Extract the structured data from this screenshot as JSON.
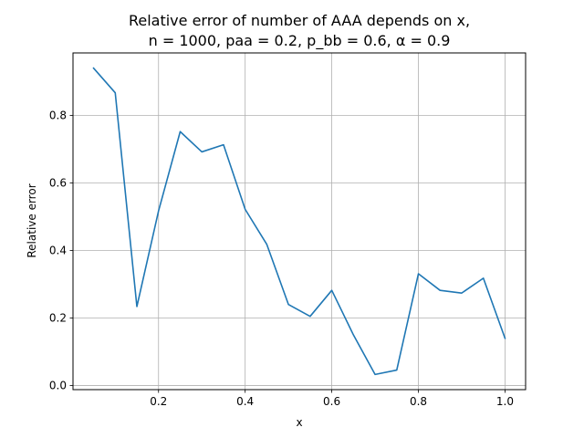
{
  "chart_data": {
    "type": "line",
    "title_lines": [
      "Relative error of number of AAA depends on x,",
      "n = 1000, paa = 0.2, p_bb = 0.6, α = 0.9"
    ],
    "xlabel": "x",
    "ylabel": "Relative error",
    "xlim": [
      0.0025,
      1.0475
    ],
    "ylim": [
      -0.012,
      0.985
    ],
    "x_ticks": [
      0.2,
      0.4,
      0.6,
      0.8,
      1.0
    ],
    "x_tick_labels": [
      "0.2",
      "0.4",
      "0.6",
      "0.8",
      "1.0"
    ],
    "y_ticks": [
      0.0,
      0.2,
      0.4,
      0.6,
      0.8
    ],
    "y_tick_labels": [
      "0.0",
      "0.2",
      "0.4",
      "0.6",
      "0.8"
    ],
    "grid": true,
    "series": [
      {
        "color": "#1f77b4",
        "x": [
          0.05,
          0.1,
          0.15,
          0.2,
          0.25,
          0.3,
          0.35,
          0.4,
          0.45,
          0.5,
          0.55,
          0.6,
          0.65,
          0.7,
          0.75,
          0.8,
          0.85,
          0.9,
          0.95,
          1.0
        ],
        "y": [
          0.94,
          0.867,
          0.234,
          0.517,
          0.752,
          0.692,
          0.713,
          0.522,
          0.418,
          0.24,
          0.205,
          0.282,
          0.15,
          0.033,
          0.046,
          0.331,
          0.282,
          0.274,
          0.318,
          0.14
        ]
      }
    ]
  }
}
